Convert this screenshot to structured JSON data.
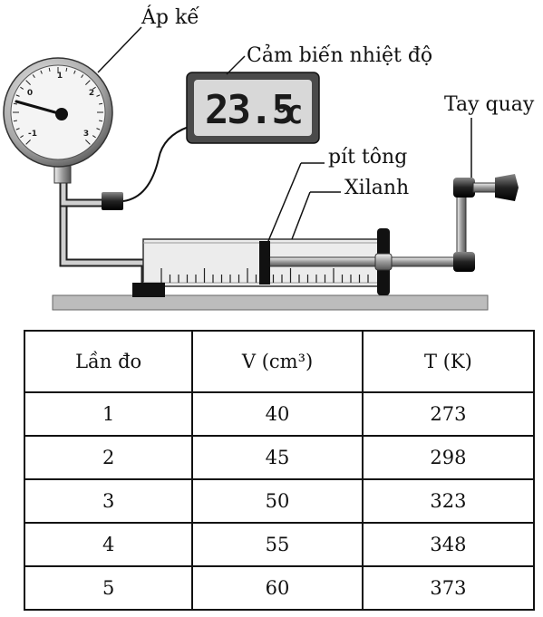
{
  "labels": {
    "pressure_gauge": "Áp kế",
    "temp_sensor": "Cảm biến nhiệt độ",
    "crank": "Tay quay",
    "piston": "pít tông",
    "cylinder": "Xilanh"
  },
  "gauge_ticks": [
    "-1",
    "0",
    "1",
    "2",
    "3"
  ],
  "sensor_reading": {
    "value": "23.5",
    "unit": "°C"
  },
  "table": {
    "headers": [
      "Lần đo",
      "V (cm³)",
      "T (K)"
    ],
    "rows": [
      [
        "1",
        "40",
        "273"
      ],
      [
        "2",
        "45",
        "298"
      ],
      [
        "3",
        "50",
        "323"
      ],
      [
        "4",
        "55",
        "348"
      ],
      [
        "5",
        "60",
        "373"
      ]
    ]
  },
  "colors": {
    "line": "#111111",
    "metal": "#c9c9c9",
    "base": "#bcbcbc",
    "lcd_bg": "#d8d8d8",
    "gauge_bg": "#f4f4f4"
  }
}
